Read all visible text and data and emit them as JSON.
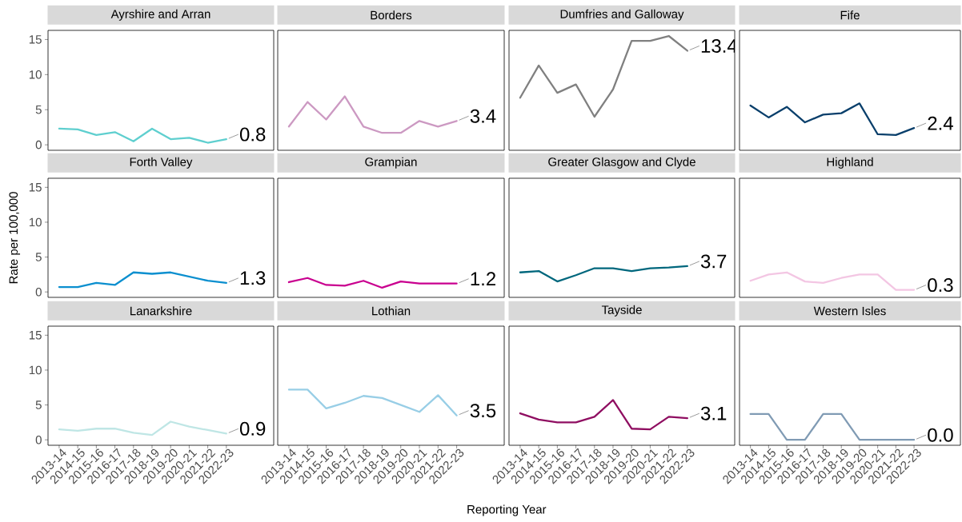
{
  "chart_data": [
    {
      "type": "line",
      "title": "Ayrshire and Arran",
      "categories": [
        "2013-14",
        "2014-15",
        "2015-16",
        "2016-17",
        "2017-18",
        "2018-19",
        "2019-20",
        "2020-21",
        "2021-22",
        "2022-23"
      ],
      "values": [
        2.3,
        2.2,
        1.4,
        1.8,
        0.5,
        2.3,
        0.8,
        1.0,
        0.3,
        0.8
      ],
      "color": "#5fcfcf",
      "value_labels": [
        null,
        null,
        null,
        null,
        null,
        null,
        null,
        null,
        null,
        "0.8"
      ],
      "ylim": [
        -0.78,
        16.3
      ],
      "yticks": [
        0,
        5,
        10,
        15
      ],
      "tick_labels": "y"
    },
    {
      "type": "line",
      "title": "Borders",
      "categories": [
        "2013-14",
        "2014-15",
        "2015-16",
        "2016-17",
        "2017-18",
        "2018-19",
        "2019-20",
        "2020-21",
        "2021-22",
        "2022-23"
      ],
      "values": [
        2.6,
        6.1,
        3.6,
        6.9,
        2.6,
        1.7,
        1.7,
        3.4,
        2.6,
        3.4
      ],
      "color": "#cc99c2",
      "value_labels": [
        null,
        null,
        null,
        null,
        null,
        null,
        null,
        null,
        null,
        "3.4"
      ],
      "ylim": [
        -0.78,
        16.3
      ],
      "yticks": [
        0,
        5,
        10,
        15
      ],
      "tick_labels": false
    },
    {
      "type": "line",
      "title": "Dumfries and Galloway",
      "categories": [
        "2013-14",
        "2014-15",
        "2015-16",
        "2016-17",
        "2017-18",
        "2018-19",
        "2019-20",
        "2020-21",
        "2021-22",
        "2022-23"
      ],
      "values": [
        6.7,
        11.3,
        7.4,
        8.6,
        4.0,
        7.9,
        14.8,
        14.8,
        15.5,
        13.4
      ],
      "color": "#808080",
      "value_labels": [
        null,
        null,
        null,
        null,
        null,
        null,
        null,
        null,
        null,
        "13.4"
      ],
      "ylim": [
        -0.78,
        16.3
      ],
      "yticks": [
        0,
        5,
        10,
        15
      ],
      "tick_labels": false
    },
    {
      "type": "line",
      "title": "Fife",
      "categories": [
        "2013-14",
        "2014-15",
        "2015-16",
        "2016-17",
        "2017-18",
        "2018-19",
        "2019-20",
        "2020-21",
        "2021-22",
        "2022-23"
      ],
      "values": [
        5.6,
        3.9,
        5.4,
        3.2,
        4.3,
        4.5,
        5.9,
        1.5,
        1.4,
        2.4
      ],
      "color": "#093f6b",
      "value_labels": [
        null,
        null,
        null,
        null,
        null,
        null,
        null,
        null,
        null,
        "2.4"
      ],
      "ylim": [
        -0.78,
        16.3
      ],
      "yticks": [
        0,
        5,
        10,
        15
      ],
      "tick_labels": false
    },
    {
      "type": "line",
      "title": "Forth Valley",
      "ylabel": "Rate per 100,000",
      "categories": [
        "2013-14",
        "2014-15",
        "2015-16",
        "2016-17",
        "2017-18",
        "2018-19",
        "2019-20",
        "2020-21",
        "2021-22",
        "2022-23"
      ],
      "values": [
        0.7,
        0.7,
        1.3,
        1.0,
        2.8,
        2.6,
        2.8,
        2.2,
        1.6,
        1.3
      ],
      "color": "#0b8fcf",
      "value_labels": [
        null,
        null,
        null,
        null,
        null,
        null,
        null,
        null,
        null,
        "1.3"
      ],
      "ylim": [
        -0.78,
        16.3
      ],
      "yticks": [
        0,
        5,
        10,
        15
      ],
      "tick_labels": "y"
    },
    {
      "type": "line",
      "title": "Grampian",
      "categories": [
        "2013-14",
        "2014-15",
        "2015-16",
        "2016-17",
        "2017-18",
        "2018-19",
        "2019-20",
        "2020-21",
        "2021-22",
        "2022-23"
      ],
      "values": [
        1.4,
        2.0,
        1.0,
        0.9,
        1.6,
        0.6,
        1.5,
        1.2,
        1.2,
        1.2
      ],
      "color": "#c9008f",
      "value_labels": [
        null,
        null,
        null,
        null,
        null,
        null,
        null,
        null,
        null,
        "1.2"
      ],
      "ylim": [
        -0.78,
        16.3
      ],
      "yticks": [
        0,
        5,
        10,
        15
      ],
      "tick_labels": false
    },
    {
      "type": "line",
      "title": "Greater Glasgow and Clyde",
      "categories": [
        "2013-14",
        "2014-15",
        "2015-16",
        "2016-17",
        "2017-18",
        "2018-19",
        "2019-20",
        "2020-21",
        "2021-22",
        "2022-23"
      ],
      "values": [
        2.8,
        3.0,
        1.5,
        2.4,
        3.4,
        3.4,
        3.0,
        3.4,
        3.5,
        3.7
      ],
      "color": "#00677d",
      "value_labels": [
        null,
        null,
        null,
        null,
        null,
        null,
        null,
        null,
        null,
        "3.7"
      ],
      "ylim": [
        -0.78,
        16.3
      ],
      "yticks": [
        0,
        5,
        10,
        15
      ],
      "tick_labels": false
    },
    {
      "type": "line",
      "title": "Highland",
      "categories": [
        "2013-14",
        "2014-15",
        "2015-16",
        "2016-17",
        "2017-18",
        "2018-19",
        "2019-20",
        "2020-21",
        "2021-22",
        "2022-23"
      ],
      "values": [
        1.6,
        2.5,
        2.8,
        1.5,
        1.3,
        2.0,
        2.5,
        2.5,
        0.3,
        0.3
      ],
      "color": "#f3c6e3",
      "value_labels": [
        null,
        null,
        null,
        null,
        null,
        null,
        null,
        null,
        null,
        "0.3"
      ],
      "ylim": [
        -0.78,
        16.3
      ],
      "yticks": [
        0,
        5,
        10,
        15
      ],
      "tick_labels": false
    },
    {
      "type": "line",
      "title": "Lanarkshire",
      "categories": [
        "2013-14",
        "2014-15",
        "2015-16",
        "2016-17",
        "2017-18",
        "2018-19",
        "2019-20",
        "2020-21",
        "2021-22",
        "2022-23"
      ],
      "values": [
        1.5,
        1.3,
        1.6,
        1.6,
        1.0,
        0.7,
        2.6,
        1.9,
        1.4,
        0.9
      ],
      "color": "#bfe6e5",
      "value_labels": [
        null,
        null,
        null,
        null,
        null,
        null,
        null,
        null,
        null,
        "0.9"
      ],
      "ylim": [
        -0.78,
        16.3
      ],
      "yticks": [
        0,
        5,
        10,
        15
      ]
    },
    {
      "type": "line",
      "title": "Lothian",
      "xlabel": "Reporting Year",
      "categories": [
        "2013-14",
        "2014-15",
        "2015-16",
        "2016-17",
        "2017-18",
        "2018-19",
        "2019-20",
        "2020-21",
        "2021-22",
        "2022-23"
      ],
      "values": [
        7.2,
        7.2,
        4.5,
        5.3,
        6.3,
        6.0,
        5.0,
        4.0,
        6.4,
        3.5
      ],
      "color": "#98cee6",
      "value_labels": [
        null,
        null,
        null,
        null,
        null,
        null,
        null,
        null,
        null,
        "3.5"
      ],
      "ylim": [
        -0.78,
        16.3
      ],
      "yticks": [
        0,
        5,
        10,
        15
      ],
      "tick_labels": "x"
    },
    {
      "type": "line",
      "title": "Tayside",
      "categories": [
        "2013-14",
        "2014-15",
        "2015-16",
        "2016-17",
        "2017-18",
        "2018-19",
        "2019-20",
        "2020-21",
        "2021-22",
        "2022-23"
      ],
      "values": [
        3.8,
        2.9,
        2.5,
        2.5,
        3.3,
        5.7,
        1.6,
        1.5,
        3.3,
        3.1
      ],
      "color": "#8f0e61",
      "value_labels": [
        null,
        null,
        null,
        null,
        null,
        null,
        null,
        null,
        null,
        "3.1"
      ],
      "ylim": [
        -0.78,
        16.3
      ],
      "yticks": [
        0,
        5,
        10,
        15
      ],
      "tick_labels": "x"
    },
    {
      "type": "line",
      "title": "Western Isles",
      "categories": [
        "2013-14",
        "2014-15",
        "2015-16",
        "2016-17",
        "2017-18",
        "2018-19",
        "2019-20",
        "2020-21",
        "2021-22",
        "2022-23"
      ],
      "values": [
        3.7,
        3.7,
        0.0,
        0.0,
        3.7,
        3.7,
        0.0,
        0.0,
        0.0,
        0.0
      ],
      "color": "#809bb4",
      "value_labels": [
        null,
        null,
        null,
        null,
        null,
        null,
        null,
        null,
        null,
        "0.0"
      ],
      "ylim": [
        -0.78,
        16.3
      ],
      "yticks": [
        0,
        5,
        10,
        15
      ],
      "tick_labels": "x"
    }
  ]
}
